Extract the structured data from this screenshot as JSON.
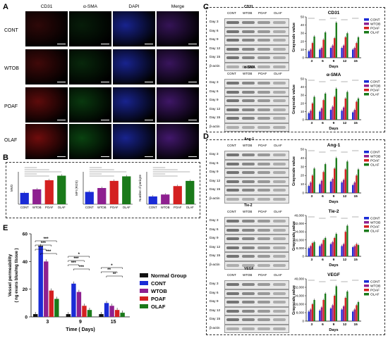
{
  "panels": {
    "A": "A",
    "B": "B",
    "C": "C",
    "D": "D",
    "E": "E"
  },
  "panel_a": {
    "columns": [
      "CD31",
      "α-SMA",
      "DAPI",
      "Merge"
    ],
    "rows": [
      "CONT",
      "WTOB",
      "POAF",
      "OLAF"
    ]
  },
  "colors": {
    "CONT": "#1a2bd6",
    "WTOB": "#8e2090",
    "POAF": "#d42020",
    "OLAF": "#1a7a1a",
    "Normal": "#111111"
  },
  "groups": [
    "CONT",
    "WTOB",
    "POAF",
    "OLAF"
  ],
  "blot_rows": [
    "Day 3",
    "Day 6",
    "Day 9",
    "Day 12",
    "Day 15",
    "β-actin"
  ],
  "blot_cols": [
    "CONT",
    "WTOB",
    "POAF",
    "OLAF"
  ],
  "days": [
    "3",
    "6",
    "9",
    "12",
    "15"
  ],
  "blot_charts": {
    "ylabel": "Grayscale value",
    "xlabel": "Days"
  },
  "panel_b": {
    "ylabels": [
      "MVD",
      "MFI (ROS)",
      "Number of pericyte"
    ],
    "xcats": [
      "CONT",
      "WTOB",
      "POAF",
      "OLAF"
    ]
  },
  "panel_e": {
    "ylabel": "Vessel permeability",
    "ylabel2": "( ng evans blue/mg tissue )",
    "xlabel": "Time ( Days)",
    "xcats": [
      "3",
      "9",
      "15"
    ],
    "legend": [
      "Normal Group",
      "CONT",
      "WTOB",
      "POAF",
      "OLAF"
    ],
    "sig": [
      "***",
      "***",
      "***",
      "***",
      "*",
      "***",
      "***",
      "***",
      "*",
      "**",
      "**"
    ]
  },
  "chart_data": [
    {
      "type": "bar",
      "title": "CD31",
      "xlabel": "Days",
      "ylabel": "Grayscale value",
      "categories": [
        "3",
        "6",
        "9",
        "12",
        "15"
      ],
      "ylim": [
        0,
        50
      ],
      "series": [
        {
          "name": "CONT",
          "values": [
            8,
            10,
            12,
            12,
            10
          ]
        },
        {
          "name": "WTOB",
          "values": [
            10,
            12,
            15,
            15,
            12
          ]
        },
        {
          "name": "POAF",
          "values": [
            18,
            22,
            24,
            25,
            18
          ]
        },
        {
          "name": "OLAF",
          "values": [
            26,
            31,
            43,
            30,
            25
          ]
        }
      ]
    },
    {
      "type": "bar",
      "title": "α-SMA",
      "xlabel": "Days",
      "ylabel": "Grayscale value",
      "categories": [
        "3",
        "6",
        "9",
        "12",
        "15"
      ],
      "ylim": [
        0,
        50
      ],
      "series": [
        {
          "name": "CONT",
          "values": [
            8,
            10,
            12,
            11,
            9
          ]
        },
        {
          "name": "WTOB",
          "values": [
            11,
            14,
            16,
            15,
            12
          ]
        },
        {
          "name": "POAF",
          "values": [
            20,
            24,
            28,
            26,
            22
          ]
        },
        {
          "name": "OLAF",
          "values": [
            28,
            32,
            38,
            34,
            26
          ]
        }
      ]
    },
    {
      "type": "bar",
      "title": "Ang-1",
      "xlabel": "Days",
      "ylabel": "Grayscale value",
      "categories": [
        "3",
        "6",
        "9",
        "12",
        "15"
      ],
      "ylim": [
        0,
        50
      ],
      "series": [
        {
          "name": "CONT",
          "values": [
            8,
            10,
            13,
            12,
            9
          ]
        },
        {
          "name": "WTOB",
          "values": [
            12,
            14,
            16,
            15,
            12
          ]
        },
        {
          "name": "POAF",
          "values": [
            20,
            24,
            28,
            27,
            20
          ]
        },
        {
          "name": "OLAF",
          "values": [
            28,
            33,
            40,
            36,
            27
          ]
        }
      ]
    },
    {
      "type": "bar",
      "title": "Tie-2",
      "xlabel": "Days",
      "ylabel": "Grayscale value",
      "categories": [
        "3",
        "6",
        "9",
        "12",
        "15"
      ],
      "ylim": [
        0,
        40000
      ],
      "series": [
        {
          "name": "CONT",
          "values": [
            8000,
            10000,
            12000,
            10000,
            9000
          ]
        },
        {
          "name": "WTOB",
          "values": [
            10000,
            12000,
            14000,
            12000,
            10000
          ]
        },
        {
          "name": "POAF",
          "values": [
            13000,
            16000,
            18000,
            24000,
            12000
          ]
        },
        {
          "name": "OLAF",
          "values": [
            14000,
            18000,
            22000,
            30000,
            11000
          ]
        }
      ]
    },
    {
      "type": "bar",
      "title": "VEGF",
      "xlabel": "Days",
      "ylabel": "Grayscale value",
      "categories": [
        "3",
        "6",
        "9",
        "12",
        "15"
      ],
      "ylim": [
        0,
        40000
      ],
      "series": [
        {
          "name": "CONT",
          "values": [
            9000,
            10000,
            12000,
            11000,
            9000
          ]
        },
        {
          "name": "WTOB",
          "values": [
            11000,
            13000,
            15000,
            14000,
            11000
          ]
        },
        {
          "name": "POAF",
          "values": [
            16000,
            20000,
            24000,
            22000,
            15000
          ]
        },
        {
          "name": "OLAF",
          "values": [
            20000,
            26000,
            33000,
            28000,
            18000
          ]
        }
      ]
    },
    {
      "type": "bar",
      "ylabel": "MVD",
      "categories": [
        "CONT",
        "WTOB",
        "POAF",
        "OLAF"
      ],
      "ylim": [
        0,
        10
      ],
      "values": [
        3.5,
        4.6,
        7.4,
        8.8
      ]
    },
    {
      "type": "bar",
      "ylabel": "MFI (ROS)",
      "categories": [
        "CONT",
        "WTOB",
        "POAF",
        "OLAF"
      ],
      "ylim": [
        0,
        10
      ],
      "values": [
        3.8,
        5.0,
        7.2,
        8.6
      ]
    },
    {
      "type": "bar",
      "ylabel": "Number of pericyte",
      "categories": [
        "CONT",
        "WTOB",
        "POAF",
        "OLAF"
      ],
      "ylim": [
        0,
        10
      ],
      "values": [
        2.4,
        3.0,
        5.6,
        7.2
      ]
    },
    {
      "type": "bar",
      "ylabel": "Vessel permeability",
      "xlabel": "Time ( Days)",
      "categories": [
        "3",
        "9",
        "15"
      ],
      "ylim": [
        0,
        60
      ],
      "series": [
        {
          "name": "Normal Group",
          "values": [
            2,
            2,
            2
          ]
        },
        {
          "name": "CONT",
          "values": [
            51,
            24,
            10
          ]
        },
        {
          "name": "WTOB",
          "values": [
            40,
            18,
            8
          ]
        },
        {
          "name": "POAF",
          "values": [
            19,
            8,
            5
          ]
        },
        {
          "name": "OLAF",
          "values": [
            13,
            5,
            3
          ]
        }
      ]
    }
  ]
}
